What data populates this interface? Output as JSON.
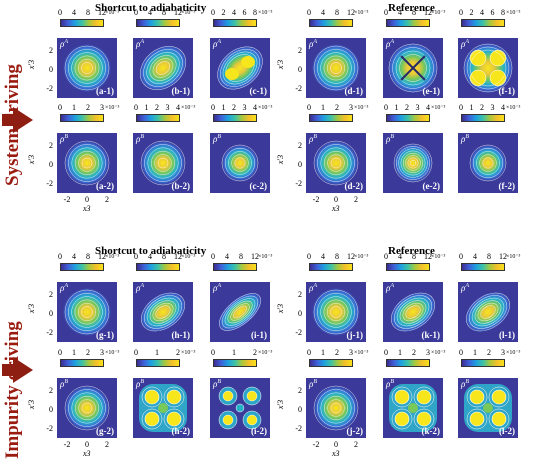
{
  "titles": {
    "top_left": "Shortcut to adiabaticity",
    "top_right": "Reference",
    "bottom_left": "Shortcut to adiabaticity",
    "bottom_right": "Reference"
  },
  "side_labels": {
    "top": "System driving",
    "bottom": "Impurity driving"
  },
  "colors": {
    "background": "#3b3a9b",
    "arrow": "#8e1e12",
    "side_text": "#9a1c10"
  },
  "axes": {
    "y_label": "x'3",
    "x_label": "x3",
    "y_ticks": [
      "2",
      "0",
      "-2"
    ],
    "x_ticks": [
      "-2",
      "0",
      "2"
    ]
  },
  "colorbars": {
    "a1": {
      "ticks": [
        "0",
        "4",
        "8",
        "12"
      ],
      "exp": "×10⁻³"
    },
    "b1": {
      "ticks": [
        "0",
        "4",
        "8",
        "12"
      ],
      "exp": "×10⁻³"
    },
    "c1": {
      "ticks": [
        "0",
        "2",
        "4",
        "6",
        "8"
      ],
      "exp": "×10⁻³"
    },
    "d1": {
      "ticks": [
        "0",
        "4",
        "8",
        "12"
      ],
      "exp": "×10⁻³"
    },
    "e1": {
      "ticks": [
        "0",
        "4",
        "8",
        "12"
      ],
      "exp": "×10⁻³"
    },
    "f1": {
      "ticks": [
        "0",
        "2",
        "4",
        "6",
        "8"
      ],
      "exp": "×10⁻³"
    },
    "a2": {
      "ticks": [
        "0",
        "1",
        "2",
        "3"
      ],
      "exp": "×10⁻³"
    },
    "b2": {
      "ticks": [
        "0",
        "1",
        "2",
        "3",
        "4"
      ],
      "exp": "×10⁻³"
    },
    "c2": {
      "ticks": [
        "0",
        "1",
        "2",
        "3",
        "4"
      ],
      "exp": "×10⁻³"
    },
    "d2": {
      "ticks": [
        "0",
        "1",
        "2",
        "3"
      ],
      "exp": "×10⁻³"
    },
    "e2": {
      "ticks": [
        "0",
        "1",
        "2",
        "3",
        "4"
      ],
      "exp": "×10⁻³"
    },
    "f2": {
      "ticks": [
        "0",
        "1",
        "2",
        "3",
        "4"
      ],
      "exp": "×10⁻³"
    },
    "g1": {
      "ticks": [
        "0",
        "4",
        "8",
        "12"
      ],
      "exp": "×10⁻³"
    },
    "h1": {
      "ticks": [
        "0",
        "4",
        "8",
        "12"
      ],
      "exp": "×10⁻³"
    },
    "i1": {
      "ticks": [
        "0",
        "4",
        "8",
        "12"
      ],
      "exp": "×10⁻³"
    },
    "j1": {
      "ticks": [
        "0",
        "4",
        "8",
        "12"
      ],
      "exp": "×10⁻³"
    },
    "k1": {
      "ticks": [
        "0",
        "4",
        "8",
        "12"
      ],
      "exp": "×10⁻³"
    },
    "l1": {
      "ticks": [
        "0",
        "4",
        "8",
        "12"
      ],
      "exp": "×10⁻³"
    },
    "g2": {
      "ticks": [
        "0",
        "1",
        "2",
        "3"
      ],
      "exp": "×10⁻³"
    },
    "h2": {
      "ticks": [
        "0",
        "1",
        "2"
      ],
      "exp": "×10⁻³"
    },
    "i2": {
      "ticks": [
        "0",
        "1",
        "2"
      ],
      "exp": "×10⁻³"
    },
    "j2": {
      "ticks": [
        "0",
        "1",
        "2",
        "3"
      ],
      "exp": "×10⁻³"
    },
    "k2": {
      "ticks": [
        "0",
        "1",
        "2",
        "3"
      ],
      "exp": "×10⁻³"
    },
    "l2": {
      "ticks": [
        "0",
        "1",
        "2",
        "3"
      ],
      "exp": "×10⁻³"
    }
  },
  "panels": {
    "a1": {
      "label": "(a-1)",
      "rho": "A",
      "shape": "blob"
    },
    "b1": {
      "label": "(b-1)",
      "rho": "A",
      "shape": "diag"
    },
    "c1": {
      "label": "(c-1)",
      "rho": "A",
      "shape": "diag-lobes"
    },
    "d1": {
      "label": "(d-1)",
      "rho": "A",
      "shape": "blob"
    },
    "e1": {
      "label": "(e-1)",
      "rho": "A",
      "shape": "cross"
    },
    "f1": {
      "label": "(f-1)",
      "rho": "A",
      "shape": "four-lobe"
    },
    "a2": {
      "label": "(a-2)",
      "rho": "B",
      "shape": "round"
    },
    "b2": {
      "label": "(b-2)",
      "rho": "B",
      "shape": "round"
    },
    "c2": {
      "label": "(c-2)",
      "rho": "B",
      "shape": "round-small"
    },
    "d2": {
      "label": "(d-2)",
      "rho": "B",
      "shape": "round"
    },
    "e2": {
      "label": "(e-2)",
      "rho": "B",
      "shape": "rings"
    },
    "f2": {
      "label": "(f-2)",
      "rho": "B",
      "shape": "round-small"
    },
    "g1": {
      "label": "(g-1)",
      "rho": "A",
      "shape": "blob"
    },
    "h1": {
      "label": "(h-1)",
      "rho": "A",
      "shape": "ellipse"
    },
    "i1": {
      "label": "(i-1)",
      "rho": "A",
      "shape": "ellipse-thin"
    },
    "j1": {
      "label": "(j-1)",
      "rho": "A",
      "shape": "blob"
    },
    "k1": {
      "label": "(k-1)",
      "rho": "A",
      "shape": "ellipse"
    },
    "l1": {
      "label": "(l-1)",
      "rho": "A",
      "shape": "ellipse"
    },
    "g2": {
      "label": "(g-2)",
      "rho": "B",
      "shape": "round"
    },
    "h2": {
      "label": "(h-2)",
      "rho": "B",
      "shape": "four-spots"
    },
    "i2": {
      "label": "(i-2)",
      "rho": "B",
      "shape": "four-spots-sep"
    },
    "j2": {
      "label": "(j-2)",
      "rho": "B",
      "shape": "round"
    },
    "k2": {
      "label": "(k-2)",
      "rho": "B",
      "shape": "four-spots"
    },
    "l2": {
      "label": "(l-2)",
      "rho": "B",
      "shape": "four-spots"
    }
  }
}
